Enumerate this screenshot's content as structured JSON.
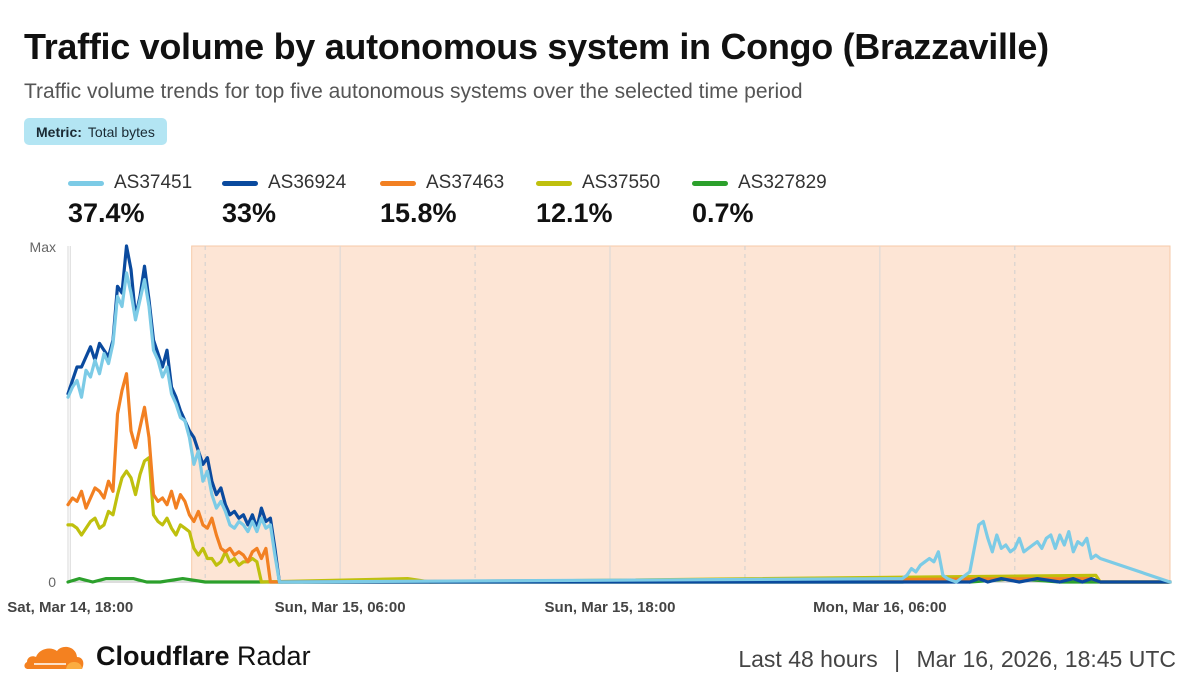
{
  "header": {
    "title": "Traffic volume by autonomous system in Congo (Brazzaville)",
    "subtitle": "Traffic volume trends for top five autonomous systems over the selected time period",
    "metric_key": "Metric:",
    "metric_value": "Total bytes"
  },
  "legend": [
    {
      "name": "AS37451",
      "share": "37.4%",
      "color": "#7ccbe6"
    },
    {
      "name": "AS36924",
      "share": "33%",
      "color": "#0a4a9e"
    },
    {
      "name": "AS37463",
      "share": "15.8%",
      "color": "#f28022"
    },
    {
      "name": "AS37550",
      "share": "12.1%",
      "color": "#bfc00e"
    },
    {
      "name": "AS327829",
      "share": "0.7%",
      "color": "#2ca02c"
    }
  ],
  "footer": {
    "brand_bold": "Cloudflare",
    "brand_rest": " Radar",
    "range": "Last 48 hours",
    "separator": "|",
    "timestamp": "Mar 16, 2026, 18:45 UTC"
  },
  "chart_data": {
    "type": "line",
    "y_ticks": [
      "Max",
      "0"
    ],
    "x_ticks": [
      "Sat, Mar 14, 18:00",
      "Sun, Mar 15, 06:00",
      "Sun, Mar 15, 18:00",
      "Mon, Mar 16, 06:00"
    ],
    "x_range_hours": [
      17.9,
      66.9
    ],
    "x_tick_hours": [
      18,
      30,
      42,
      54
    ],
    "x_dashed_gridline_hours": [
      24,
      36,
      48,
      60
    ],
    "ylim": [
      0,
      1
    ],
    "highlight_range_hours": [
      23.4,
      66.9
    ],
    "highlight_color": "#fde5d5",
    "grid": true,
    "series": [
      {
        "name": "AS37451",
        "points": [
          [
            17.9,
            0.55
          ],
          [
            18.1,
            0.58
          ],
          [
            18.3,
            0.6
          ],
          [
            18.5,
            0.55
          ],
          [
            18.7,
            0.63
          ],
          [
            18.9,
            0.61
          ],
          [
            19.1,
            0.66
          ],
          [
            19.3,
            0.62
          ],
          [
            19.5,
            0.68
          ],
          [
            19.7,
            0.65
          ],
          [
            19.9,
            0.71
          ],
          [
            20.1,
            0.85
          ],
          [
            20.3,
            0.82
          ],
          [
            20.5,
            0.92
          ],
          [
            20.7,
            0.86
          ],
          [
            20.9,
            0.78
          ],
          [
            21.1,
            0.84
          ],
          [
            21.3,
            0.9
          ],
          [
            21.5,
            0.82
          ],
          [
            21.7,
            0.69
          ],
          [
            21.9,
            0.66
          ],
          [
            22.1,
            0.61
          ],
          [
            22.3,
            0.64
          ],
          [
            22.5,
            0.56
          ],
          [
            22.7,
            0.53
          ],
          [
            22.9,
            0.49
          ],
          [
            23.1,
            0.48
          ],
          [
            23.3,
            0.43
          ],
          [
            23.5,
            0.35
          ],
          [
            23.7,
            0.39
          ],
          [
            23.9,
            0.3
          ],
          [
            24.1,
            0.33
          ],
          [
            24.3,
            0.26
          ],
          [
            24.5,
            0.22
          ],
          [
            24.7,
            0.24
          ],
          [
            24.9,
            0.21
          ],
          [
            25.1,
            0.17
          ],
          [
            25.3,
            0.16
          ],
          [
            25.5,
            0.18
          ],
          [
            25.7,
            0.17
          ],
          [
            25.9,
            0.15
          ],
          [
            26.1,
            0.18
          ],
          [
            26.3,
            0.15
          ],
          [
            26.5,
            0.19
          ],
          [
            26.7,
            0.16
          ],
          [
            26.9,
            0.17
          ],
          [
            27.1,
            0.08
          ],
          [
            27.3,
            0.0
          ],
          [
            55,
            0.01
          ],
          [
            55.2,
            0.02
          ],
          [
            55.4,
            0.04
          ],
          [
            55.6,
            0.03
          ],
          [
            55.8,
            0.05
          ],
          [
            56,
            0.06
          ],
          [
            56.2,
            0.07
          ],
          [
            56.4,
            0.06
          ],
          [
            56.6,
            0.09
          ],
          [
            56.8,
            0.02
          ],
          [
            57,
            0.01
          ],
          [
            57.4,
            0.0
          ],
          [
            57.6,
            0.01
          ],
          [
            58,
            0.03
          ],
          [
            58.2,
            0.1
          ],
          [
            58.4,
            0.17
          ],
          [
            58.6,
            0.18
          ],
          [
            58.8,
            0.13
          ],
          [
            59,
            0.09
          ],
          [
            59.2,
            0.14
          ],
          [
            59.4,
            0.1
          ],
          [
            59.6,
            0.11
          ],
          [
            59.8,
            0.09
          ],
          [
            60,
            0.1
          ],
          [
            60.2,
            0.13
          ],
          [
            60.4,
            0.09
          ],
          [
            60.6,
            0.1
          ],
          [
            60.8,
            0.11
          ],
          [
            61,
            0.12
          ],
          [
            61.2,
            0.1
          ],
          [
            61.4,
            0.13
          ],
          [
            61.6,
            0.14
          ],
          [
            61.8,
            0.1
          ],
          [
            62,
            0.14
          ],
          [
            62.2,
            0.11
          ],
          [
            62.4,
            0.15
          ],
          [
            62.6,
            0.09
          ],
          [
            62.8,
            0.12
          ],
          [
            63,
            0.11
          ],
          [
            63.2,
            0.13
          ],
          [
            63.4,
            0.07
          ],
          [
            63.6,
            0.08
          ],
          [
            63.8,
            0.07
          ]
        ]
      },
      {
        "name": "AS36924",
        "points": [
          [
            17.9,
            0.56
          ],
          [
            18.1,
            0.6
          ],
          [
            18.3,
            0.64
          ],
          [
            18.5,
            0.64
          ],
          [
            18.7,
            0.67
          ],
          [
            18.9,
            0.7
          ],
          [
            19.1,
            0.66
          ],
          [
            19.3,
            0.71
          ],
          [
            19.5,
            0.69
          ],
          [
            19.7,
            0.67
          ],
          [
            19.9,
            0.72
          ],
          [
            20.1,
            0.88
          ],
          [
            20.3,
            0.86
          ],
          [
            20.5,
            1.0
          ],
          [
            20.7,
            0.93
          ],
          [
            20.9,
            0.79
          ],
          [
            21.1,
            0.85
          ],
          [
            21.3,
            0.94
          ],
          [
            21.5,
            0.84
          ],
          [
            21.7,
            0.72
          ],
          [
            21.9,
            0.68
          ],
          [
            22.1,
            0.64
          ],
          [
            22.3,
            0.69
          ],
          [
            22.5,
            0.58
          ],
          [
            22.7,
            0.55
          ],
          [
            22.9,
            0.51
          ],
          [
            23.1,
            0.48
          ],
          [
            23.3,
            0.45
          ],
          [
            23.5,
            0.43
          ],
          [
            23.7,
            0.39
          ],
          [
            23.9,
            0.35
          ],
          [
            24.1,
            0.37
          ],
          [
            24.3,
            0.3
          ],
          [
            24.5,
            0.26
          ],
          [
            24.7,
            0.28
          ],
          [
            24.9,
            0.23
          ],
          [
            25.1,
            0.2
          ],
          [
            25.3,
            0.21
          ],
          [
            25.5,
            0.19
          ],
          [
            25.7,
            0.2
          ],
          [
            25.9,
            0.17
          ],
          [
            26.1,
            0.2
          ],
          [
            26.3,
            0.16
          ],
          [
            26.5,
            0.22
          ],
          [
            26.7,
            0.18
          ],
          [
            26.9,
            0.19
          ],
          [
            27.1,
            0.1
          ],
          [
            27.3,
            0.0
          ],
          [
            58,
            0.0
          ],
          [
            58.4,
            0.01
          ],
          [
            58.8,
            0.0
          ],
          [
            59.4,
            0.01
          ],
          [
            60.2,
            0.0
          ],
          [
            61,
            0.01
          ],
          [
            62,
            0.0
          ],
          [
            62.6,
            0.01
          ],
          [
            63,
            0.0
          ],
          [
            63.4,
            0.01
          ],
          [
            63.8,
            0.0
          ]
        ]
      },
      {
        "name": "AS37463",
        "points": [
          [
            17.9,
            0.23
          ],
          [
            18.1,
            0.25
          ],
          [
            18.3,
            0.24
          ],
          [
            18.5,
            0.27
          ],
          [
            18.7,
            0.22
          ],
          [
            18.9,
            0.25
          ],
          [
            19.1,
            0.28
          ],
          [
            19.3,
            0.27
          ],
          [
            19.5,
            0.25
          ],
          [
            19.7,
            0.3
          ],
          [
            19.9,
            0.27
          ],
          [
            20.1,
            0.5
          ],
          [
            20.3,
            0.57
          ],
          [
            20.5,
            0.62
          ],
          [
            20.7,
            0.45
          ],
          [
            20.9,
            0.4
          ],
          [
            21.1,
            0.46
          ],
          [
            21.3,
            0.52
          ],
          [
            21.5,
            0.43
          ],
          [
            21.7,
            0.26
          ],
          [
            21.9,
            0.24
          ],
          [
            22.1,
            0.25
          ],
          [
            22.3,
            0.23
          ],
          [
            22.5,
            0.27
          ],
          [
            22.7,
            0.22
          ],
          [
            22.9,
            0.26
          ],
          [
            23.1,
            0.24
          ],
          [
            23.3,
            0.2
          ],
          [
            23.5,
            0.18
          ],
          [
            23.7,
            0.21
          ],
          [
            23.9,
            0.17
          ],
          [
            24.1,
            0.16
          ],
          [
            24.3,
            0.19
          ],
          [
            24.5,
            0.14
          ],
          [
            24.7,
            0.1
          ],
          [
            24.9,
            0.09
          ],
          [
            25.1,
            0.1
          ],
          [
            25.3,
            0.08
          ],
          [
            25.5,
            0.09
          ],
          [
            25.7,
            0.08
          ],
          [
            25.9,
            0.06
          ],
          [
            26.1,
            0.09
          ],
          [
            26.3,
            0.1
          ],
          [
            26.5,
            0.07
          ],
          [
            26.7,
            0.1
          ],
          [
            26.9,
            0.0
          ],
          [
            63.4,
            0.01
          ],
          [
            63.8,
            0.0
          ]
        ]
      },
      {
        "name": "AS37550",
        "points": [
          [
            17.9,
            0.17
          ],
          [
            18.1,
            0.17
          ],
          [
            18.3,
            0.16
          ],
          [
            18.5,
            0.14
          ],
          [
            18.7,
            0.16
          ],
          [
            18.9,
            0.18
          ],
          [
            19.1,
            0.19
          ],
          [
            19.3,
            0.16
          ],
          [
            19.5,
            0.17
          ],
          [
            19.7,
            0.21
          ],
          [
            19.9,
            0.2
          ],
          [
            20.1,
            0.26
          ],
          [
            20.3,
            0.31
          ],
          [
            20.5,
            0.33
          ],
          [
            20.7,
            0.31
          ],
          [
            20.9,
            0.26
          ],
          [
            21.1,
            0.32
          ],
          [
            21.3,
            0.36
          ],
          [
            21.5,
            0.37
          ],
          [
            21.7,
            0.2
          ],
          [
            21.9,
            0.18
          ],
          [
            22.1,
            0.17
          ],
          [
            22.3,
            0.19
          ],
          [
            22.5,
            0.16
          ],
          [
            22.7,
            0.14
          ],
          [
            22.9,
            0.17
          ],
          [
            23.1,
            0.16
          ],
          [
            23.3,
            0.15
          ],
          [
            23.5,
            0.1
          ],
          [
            23.7,
            0.08
          ],
          [
            23.9,
            0.1
          ],
          [
            24.1,
            0.07
          ],
          [
            24.3,
            0.07
          ],
          [
            24.5,
            0.05
          ],
          [
            24.7,
            0.06
          ],
          [
            24.9,
            0.09
          ],
          [
            25.1,
            0.06
          ],
          [
            25.3,
            0.07
          ],
          [
            25.5,
            0.05
          ],
          [
            25.7,
            0.06
          ],
          [
            25.9,
            0.06
          ],
          [
            26.1,
            0.07
          ],
          [
            26.3,
            0.06
          ],
          [
            26.5,
            0.0
          ],
          [
            33,
            0.01
          ],
          [
            34,
            0.0
          ],
          [
            63.6,
            0.02
          ],
          [
            63.8,
            0.0
          ]
        ]
      },
      {
        "name": "AS327829",
        "points": [
          [
            17.9,
            0.0
          ],
          [
            18.4,
            0.01
          ],
          [
            19,
            0.0
          ],
          [
            19.6,
            0.01
          ],
          [
            20.2,
            0.01
          ],
          [
            20.8,
            0.01
          ],
          [
            21.4,
            0.0
          ],
          [
            22,
            0.0
          ],
          [
            23,
            0.01
          ],
          [
            24,
            0.0
          ],
          [
            26,
            0.0
          ],
          [
            30,
            0.0
          ],
          [
            55,
            0.0
          ],
          [
            57,
            0.01
          ],
          [
            58,
            0.0
          ],
          [
            60,
            0.01
          ],
          [
            62,
            0.0
          ],
          [
            64,
            0.0
          ]
        ]
      }
    ]
  }
}
